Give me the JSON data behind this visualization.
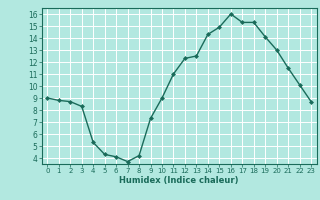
{
  "x": [
    0,
    1,
    2,
    3,
    4,
    5,
    6,
    7,
    8,
    9,
    10,
    11,
    12,
    13,
    14,
    15,
    16,
    17,
    18,
    19,
    20,
    21,
    22,
    23
  ],
  "y": [
    9.0,
    8.8,
    8.7,
    8.3,
    5.3,
    4.3,
    4.1,
    3.7,
    4.2,
    7.3,
    9.0,
    11.0,
    12.3,
    12.5,
    14.3,
    14.9,
    16.0,
    15.3,
    15.3,
    14.1,
    13.0,
    11.5,
    10.1,
    8.7
  ],
  "xlabel": "Humidex (Indice chaleur)",
  "xlim": [
    -0.5,
    23.5
  ],
  "ylim": [
    3.5,
    16.5
  ],
  "yticks": [
    4,
    5,
    6,
    7,
    8,
    9,
    10,
    11,
    12,
    13,
    14,
    15,
    16
  ],
  "xticks": [
    0,
    1,
    2,
    3,
    4,
    5,
    6,
    7,
    8,
    9,
    10,
    11,
    12,
    13,
    14,
    15,
    16,
    17,
    18,
    19,
    20,
    21,
    22,
    23
  ],
  "line_color": "#1a6b5a",
  "marker_color": "#1a6b5a",
  "bg_color": "#b2e8e0",
  "grid_color": "#ffffff"
}
